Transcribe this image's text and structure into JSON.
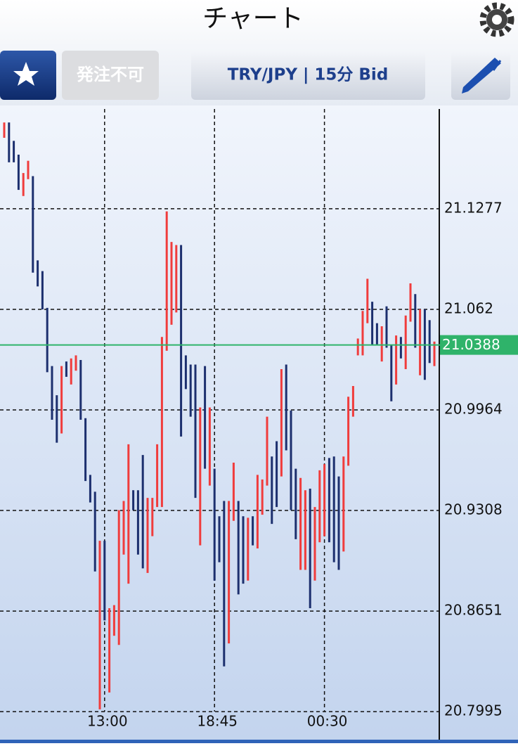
{
  "header": {
    "title": "チャート"
  },
  "toolbar": {
    "status_button": "発注不可",
    "instrument_button": "TRY/JPY | 15分 Bid"
  },
  "chart_data": {
    "type": "range_bar",
    "categories": [
      null,
      null,
      null,
      null,
      null,
      null,
      null,
      null,
      null,
      null,
      null,
      null,
      null,
      null,
      null,
      null,
      null,
      null,
      null,
      null,
      null,
      "13:00",
      null,
      null,
      null,
      null,
      null,
      null,
      null,
      null,
      null,
      null,
      null,
      null,
      null,
      null,
      null,
      null,
      null,
      null,
      null,
      null,
      null,
      null,
      "18:45",
      null,
      null,
      null,
      null,
      null,
      null,
      null,
      null,
      null,
      null,
      null,
      null,
      null,
      null,
      null,
      null,
      null,
      null,
      null,
      null,
      null,
      null,
      "00:30",
      null,
      null,
      null,
      null,
      null,
      null,
      null,
      null,
      null,
      null,
      null,
      null,
      null,
      null,
      null,
      null,
      null,
      null,
      null,
      null,
      null,
      null,
      null
    ],
    "high": [
      21.184,
      21.184,
      21.172,
      21.163,
      21.151,
      21.159,
      21.149,
      21.094,
      21.087,
      21.063,
      21.025,
      21.006,
      21.025,
      21.028,
      21.03,
      21.032,
      21.029,
      20.991,
      20.954,
      20.943,
      20.911,
      20.911,
      20.867,
      20.869,
      20.931,
      20.937,
      20.974,
      20.944,
      20.944,
      20.967,
      20.939,
      20.939,
      20.974,
      21.044,
      21.126,
      21.106,
      21.104,
      21.104,
      21.032,
      21.026,
      21.026,
      20.998,
      21.025,
      20.998,
      20.958,
      20.927,
      20.937,
      20.937,
      20.962,
      20.937,
      20.927,
      20.926,
      20.927,
      20.954,
      20.951,
      20.992,
      20.966,
      20.976,
      21.023,
      21.026,
      20.996,
      20.958,
      20.952,
      20.944,
      20.945,
      20.933,
      20.957,
      20.961,
      20.965,
      20.966,
      20.953,
      20.966,
      21.005,
      21.012,
      21.043,
      21.061,
      21.082,
      21.067,
      21.053,
      21.051,
      21.064,
      21.039,
      21.045,
      21.044,
      21.058,
      21.079,
      21.072,
      21.062,
      21.062,
      21.055,
      21.041
    ],
    "low": [
      21.174,
      21.158,
      21.158,
      21.14,
      21.136,
      21.147,
      21.086,
      21.077,
      21.062,
      21.021,
      20.99,
      20.975,
      20.981,
      21.018,
      21.013,
      21.022,
      20.99,
      20.95,
      20.936,
      20.891,
      20.801,
      20.859,
      20.812,
      20.849,
      20.843,
      20.902,
      20.883,
      20.931,
      20.902,
      20.893,
      20.89,
      20.914,
      20.933,
      20.933,
      21.035,
      21.052,
      21.06,
      20.979,
      21.01,
      20.992,
      20.939,
      20.908,
      20.958,
      20.947,
      20.885,
      20.897,
      20.829,
      20.844,
      20.924,
      20.876,
      20.883,
      20.885,
      20.908,
      20.906,
      20.928,
      20.947,
      20.922,
      20.933,
      20.953,
      20.97,
      20.931,
      20.912,
      20.892,
      20.892,
      20.867,
      20.885,
      20.91,
      20.914,
      20.91,
      20.897,
      20.892,
      20.904,
      20.96,
      20.992,
      21.032,
      21.032,
      21.053,
      21.039,
      21.039,
      21.028,
      21.037,
      21.002,
      21.013,
      21.03,
      21.023,
      21.054,
      21.037,
      21.019,
      21.016,
      21.027,
      21.025
    ],
    "rising": [
      true,
      false,
      false,
      false,
      true,
      true,
      false,
      false,
      false,
      false,
      false,
      false,
      true,
      false,
      true,
      true,
      false,
      false,
      false,
      false,
      true,
      false,
      true,
      true,
      true,
      true,
      true,
      false,
      false,
      false,
      true,
      true,
      true,
      true,
      true,
      true,
      true,
      false,
      false,
      false,
      false,
      true,
      false,
      true,
      false,
      false,
      false,
      true,
      true,
      false,
      false,
      true,
      false,
      true,
      true,
      true,
      false,
      false,
      true,
      false,
      false,
      false,
      true,
      true,
      false,
      true,
      true,
      true,
      false,
      false,
      false,
      true,
      true,
      true,
      true,
      true,
      true,
      false,
      false,
      true,
      false,
      false,
      true,
      false,
      true,
      true,
      false,
      true,
      false,
      false,
      true
    ],
    "up_color": "#f03c3c",
    "down_color": "#1c2f6e",
    "ylim": [
      20.7821,
      21.1951
    ],
    "yticks": [
      20.7995,
      20.8651,
      20.9308,
      20.9964,
      21.062,
      21.1277
    ],
    "current_price": 21.0388,
    "current_color": "#2fb36a",
    "grid": true
  }
}
